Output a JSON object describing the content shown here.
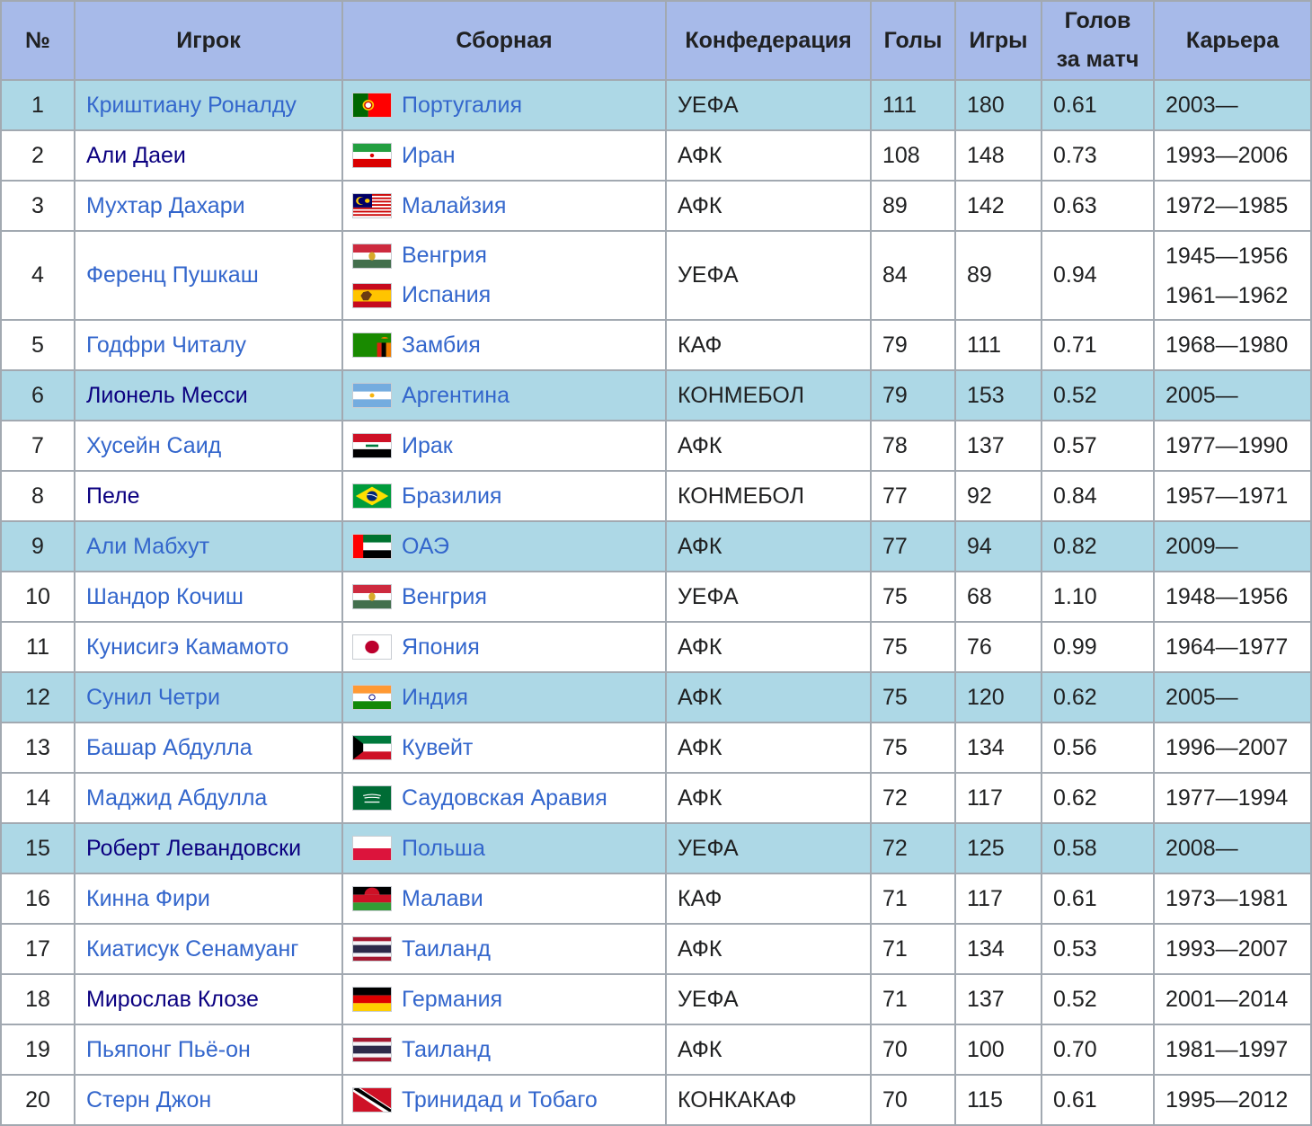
{
  "headers": {
    "no": "№",
    "player": "Игрок",
    "team": "Сборная",
    "confederation": "Конфедерация",
    "goals": "Голы",
    "games": "Игры",
    "goals_per_match_line1": "Голов",
    "goals_per_match_line2": "за матч",
    "career": "Карьера"
  },
  "rows": [
    {
      "no": "1",
      "player": "Криштиану Роналду",
      "teams": [
        {
          "name": "Португалия",
          "flag": "portugal-flag-icon"
        }
      ],
      "conf": "УЕФА",
      "goals": "111",
      "games": "180",
      "gpm": "0.61",
      "career": [
        "2003—"
      ]
    },
    {
      "no": "2",
      "player": "Али Даеи",
      "teams": [
        {
          "name": "Иран",
          "flag": "iran-flag-icon"
        }
      ],
      "conf": "АФК",
      "goals": "108",
      "games": "148",
      "gpm": "0.73",
      "career": [
        "1993—2006"
      ]
    },
    {
      "no": "3",
      "player": "Мухтар Дахари",
      "teams": [
        {
          "name": "Малайзия",
          "flag": "malaysia-flag-icon"
        }
      ],
      "conf": "АФК",
      "goals": "89",
      "games": "142",
      "gpm": "0.63",
      "career": [
        "1972—1985"
      ]
    },
    {
      "no": "4",
      "player": "Ференц Пушкаш",
      "teams": [
        {
          "name": "Венгрия",
          "flag": "hungary-flag-icon"
        },
        {
          "name": "Испания",
          "flag": "spain-flag-icon"
        }
      ],
      "conf": "УЕФА",
      "goals": "84",
      "games": "89",
      "gpm": "0.94",
      "career": [
        "1945—1956",
        "1961—1962"
      ]
    },
    {
      "no": "5",
      "player": "Годфри Читалу",
      "teams": [
        {
          "name": "Замбия",
          "flag": "zambia-flag-icon"
        }
      ],
      "conf": "КАФ",
      "goals": "79",
      "games": "111",
      "gpm": "0.71",
      "career": [
        "1968—1980"
      ]
    },
    {
      "no": "6",
      "player": "Лионель Месси",
      "teams": [
        {
          "name": "Аргентина",
          "flag": "argentina-flag-icon"
        }
      ],
      "conf": "КОНМЕБОЛ",
      "goals": "79",
      "games": "153",
      "gpm": "0.52",
      "career": [
        "2005—"
      ]
    },
    {
      "no": "7",
      "player": "Хусейн Саид",
      "teams": [
        {
          "name": "Ирак",
          "flag": "iraq-flag-icon"
        }
      ],
      "conf": "АФК",
      "goals": "78",
      "games": "137",
      "gpm": "0.57",
      "career": [
        "1977—1990"
      ]
    },
    {
      "no": "8",
      "player": "Пеле",
      "teams": [
        {
          "name": "Бразилия",
          "flag": "brazil-flag-icon"
        }
      ],
      "conf": "КОНМЕБОЛ",
      "goals": "77",
      "games": "92",
      "gpm": "0.84",
      "career": [
        "1957—1971"
      ]
    },
    {
      "no": "9",
      "player": "Али Мабхут",
      "teams": [
        {
          "name": "ОАЭ",
          "flag": "uae-flag-icon"
        }
      ],
      "conf": "АФК",
      "goals": "77",
      "games": "94",
      "gpm": "0.82",
      "career": [
        "2009—"
      ]
    },
    {
      "no": "10",
      "player": "Шандор Кочиш",
      "teams": [
        {
          "name": "Венгрия",
          "flag": "hungary-flag-icon"
        }
      ],
      "conf": "УЕФА",
      "goals": "75",
      "games": "68",
      "gpm": "1.10",
      "career": [
        "1948—1956"
      ]
    },
    {
      "no": "11",
      "player": "Кунисигэ Камамото",
      "teams": [
        {
          "name": "Япония",
          "flag": "japan-flag-icon"
        }
      ],
      "conf": "АФК",
      "goals": "75",
      "games": "76",
      "gpm": "0.99",
      "career": [
        "1964—1977"
      ]
    },
    {
      "no": "12",
      "player": "Сунил Четри",
      "teams": [
        {
          "name": "Индия",
          "flag": "india-flag-icon"
        }
      ],
      "conf": "АФК",
      "goals": "75",
      "games": "120",
      "gpm": "0.62",
      "career": [
        "2005—"
      ]
    },
    {
      "no": "13",
      "player": "Башар Абдулла",
      "teams": [
        {
          "name": "Кувейт",
          "flag": "kuwait-flag-icon"
        }
      ],
      "conf": "АФК",
      "goals": "75",
      "games": "134",
      "gpm": "0.56",
      "career": [
        "1996—2007"
      ]
    },
    {
      "no": "14",
      "player": "Маджид Абдулла",
      "teams": [
        {
          "name": "Саудовская Аравия",
          "flag": "saudi-arabia-flag-icon"
        }
      ],
      "conf": "АФК",
      "goals": "72",
      "games": "117",
      "gpm": "0.62",
      "career": [
        "1977—1994"
      ]
    },
    {
      "no": "15",
      "player": "Роберт Левандовски",
      "teams": [
        {
          "name": "Польша",
          "flag": "poland-flag-icon"
        }
      ],
      "conf": "УЕФА",
      "goals": "72",
      "games": "125",
      "gpm": "0.58",
      "career": [
        "2008—"
      ]
    },
    {
      "no": "16",
      "player": "Кинна Фири",
      "teams": [
        {
          "name": "Малави",
          "flag": "malawi-flag-icon"
        }
      ],
      "conf": "КАФ",
      "goals": "71",
      "games": "117",
      "gpm": "0.61",
      "career": [
        "1973—1981"
      ]
    },
    {
      "no": "17",
      "player": "Киатисук Сенамуанг",
      "teams": [
        {
          "name": "Таиланд",
          "flag": "thailand-flag-icon"
        }
      ],
      "conf": "АФК",
      "goals": "71",
      "games": "134",
      "gpm": "0.53",
      "career": [
        "1993—2007"
      ]
    },
    {
      "no": "18",
      "player": "Мирослав Клозе",
      "teams": [
        {
          "name": "Германия",
          "flag": "germany-flag-icon"
        }
      ],
      "conf": "УЕФА",
      "goals": "71",
      "games": "137",
      "gpm": "0.52",
      "career": [
        "2001—2014"
      ]
    },
    {
      "no": "19",
      "player": "Пьяпонг Пьё-он",
      "teams": [
        {
          "name": "Таиланд",
          "flag": "thailand-flag-icon"
        }
      ],
      "conf": "АФК",
      "goals": "70",
      "games": "100",
      "gpm": "0.70",
      "career": [
        "1981—1997"
      ]
    },
    {
      "no": "20",
      "player": "Стерн Джон",
      "teams": [
        {
          "name": "Тринидад и Тобаго",
          "flag": "trinidad-and-tobago-flag-icon"
        }
      ],
      "conf": "КОНКАКАФ",
      "goals": "70",
      "games": "115",
      "gpm": "0.61",
      "career": [
        "1995—2012"
      ]
    }
  ],
  "colors": {
    "header_bg": "#a7bae9",
    "highlight_row_bg": "#add8e6",
    "link": "#3366cc",
    "visited_link": "#0b0080",
    "border": "#a2a9b1",
    "text": "#202122"
  }
}
